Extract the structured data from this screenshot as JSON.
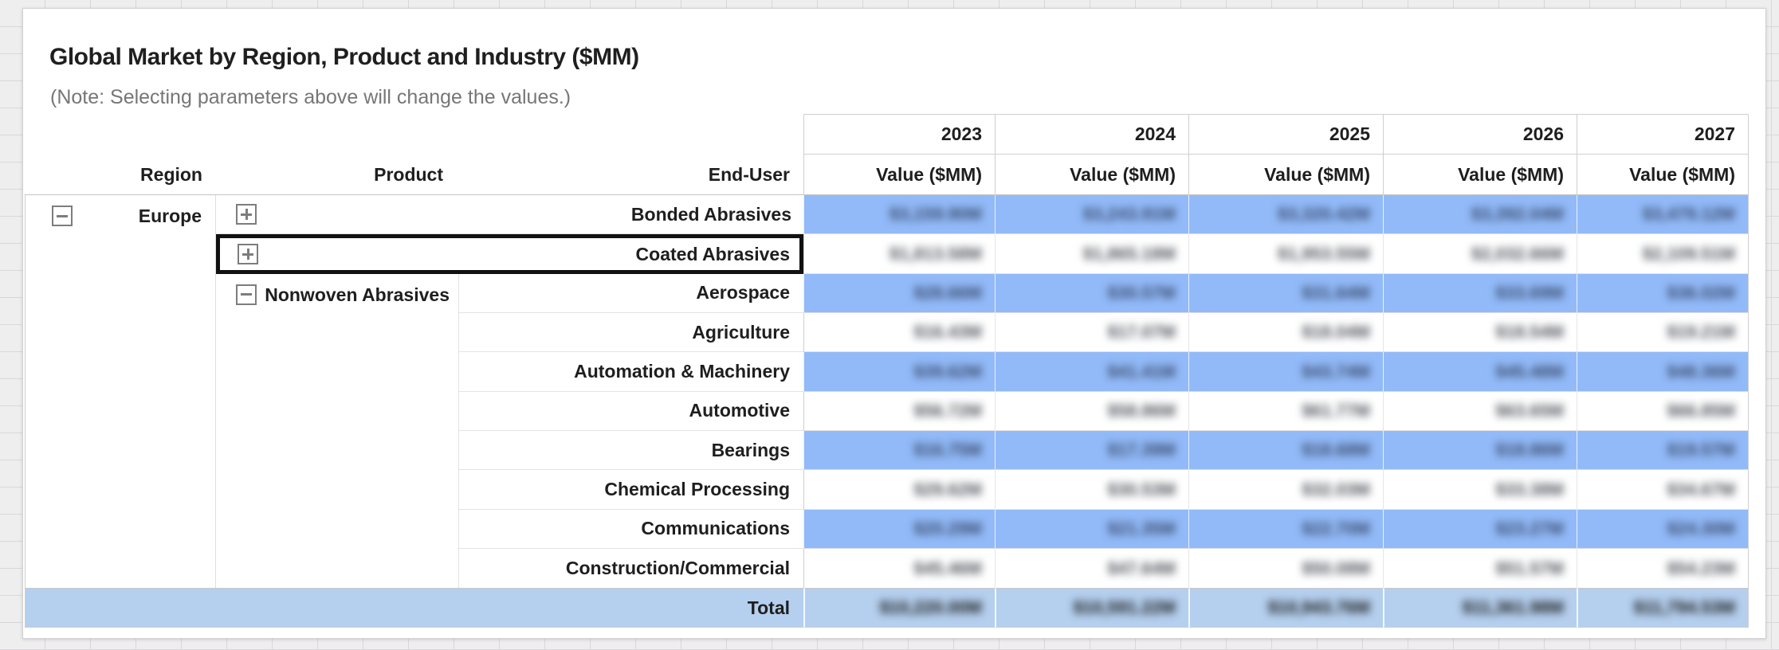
{
  "title": "Global Market by Region, Product and Industry ($MM)",
  "note": "(Note: Selecting parameters above will change the values.)",
  "values_blurred": true,
  "columns": {
    "region": "Region",
    "product": "Product",
    "end_user": "End-User",
    "value_label": "Value ($MM)",
    "years": [
      "2023",
      "2024",
      "2025",
      "2026",
      "2027"
    ]
  },
  "region": {
    "name": "Europe",
    "expanded": true
  },
  "products": [
    {
      "name": "Bonded Abrasives",
      "expanded": false,
      "selected": false,
      "values": [
        "$3,159.90M",
        "$3,243.91M",
        "$3,320.42M",
        "$3,392.04M",
        "$3,479.12M"
      ]
    },
    {
      "name": "Coated Abrasives",
      "expanded": false,
      "selected": true,
      "values": [
        "$1,813.58M",
        "$1,865.18M",
        "$1,953.55M",
        "$2,032.66M",
        "$2,109.51M"
      ]
    },
    {
      "name": "Nonwoven Abrasives",
      "expanded": true,
      "selected": false,
      "end_users": [
        {
          "name": "Aerospace",
          "values": [
            "$28.66M",
            "$30.57M",
            "$31.64M",
            "$33.69M",
            "$36.02M"
          ]
        },
        {
          "name": "Agriculture",
          "values": [
            "$16.43M",
            "$17.07M",
            "$18.04M",
            "$18.54M",
            "$19.21M"
          ]
        },
        {
          "name": "Automation & Machinery",
          "values": [
            "$39.62M",
            "$41.41M",
            "$43.74M",
            "$45.48M",
            "$48.36M"
          ]
        },
        {
          "name": "Automotive",
          "values": [
            "$56.72M",
            "$58.86M",
            "$61.77M",
            "$63.65M",
            "$66.85M"
          ]
        },
        {
          "name": "Bearings",
          "values": [
            "$16.75M",
            "$17.39M",
            "$18.68M",
            "$18.86M",
            "$19.57M"
          ]
        },
        {
          "name": "Chemical Processing",
          "values": [
            "$29.62M",
            "$30.53M",
            "$32.03M",
            "$33.38M",
            "$34.67M"
          ]
        },
        {
          "name": "Communications",
          "values": [
            "$20.29M",
            "$21.35M",
            "$22.70M",
            "$23.27M",
            "$24.30M"
          ]
        },
        {
          "name": "Construction/Commercial",
          "values": [
            "$45.46M",
            "$47.64M",
            "$50.08M",
            "$51.57M",
            "$54.23M"
          ]
        }
      ]
    }
  ],
  "total": {
    "label": "Total",
    "values": [
      "$10,220.00M",
      "$10,591.22M",
      "$10,943.76M",
      "$11,361.98M",
      "$11,794.53M"
    ]
  },
  "colors": {
    "band_blue": "#92baf8",
    "total_blue": "#b5cfee",
    "selection_border": "#111111",
    "note_gray": "#767676",
    "grid_border": "#cfcfcf"
  }
}
